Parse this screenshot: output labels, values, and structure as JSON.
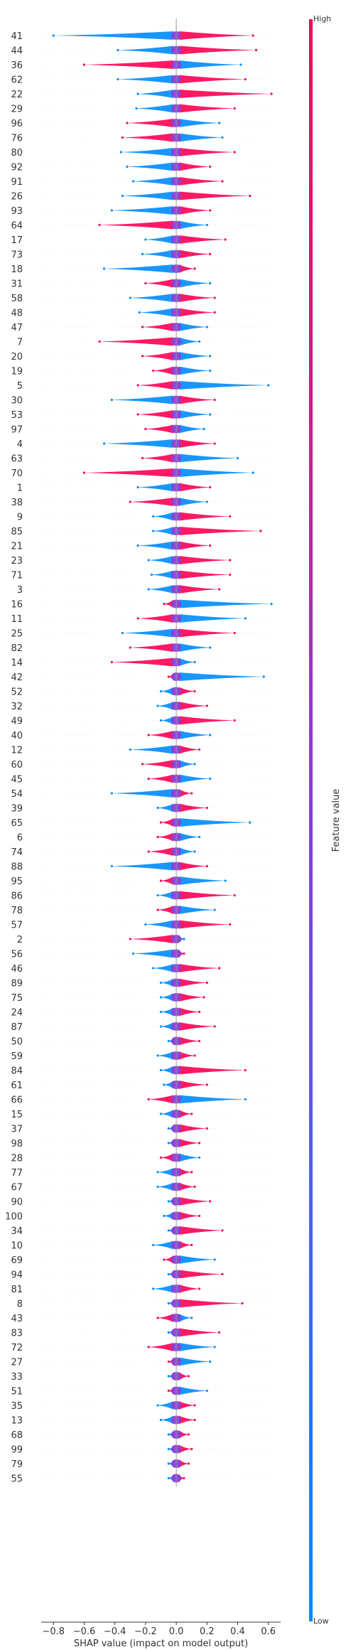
{
  "chart_data": {
    "type": "scatter",
    "subtype": "shap-beeswarm-summary",
    "xlabel": "SHAP value (impact on model output)",
    "ylabel": "",
    "xlim": [
      -0.88,
      0.68
    ],
    "x_ticks": [
      "−0.8",
      "−0.6",
      "−0.4",
      "−0.2",
      "0.0",
      "0.2",
      "0.4",
      "0.6"
    ],
    "x_tick_values": [
      -0.8,
      -0.6,
      -0.4,
      -0.2,
      0.0,
      0.2,
      0.4,
      0.6
    ],
    "grid": false,
    "zero_line": true,
    "colorbar": {
      "title": "Feature value",
      "high_label": "High",
      "low_label": "Low",
      "high_color": "#ff0052",
      "low_color": "#008bfb"
    },
    "features": [
      {
        "name": "41",
        "min": -0.8,
        "max": 0.5,
        "low_side": "left"
      },
      {
        "name": "44",
        "min": -0.38,
        "max": 0.52,
        "low_side": "left"
      },
      {
        "name": "36",
        "min": -0.6,
        "max": 0.42,
        "low_side": "right"
      },
      {
        "name": "62",
        "min": -0.38,
        "max": 0.45,
        "low_side": "left"
      },
      {
        "name": "22",
        "min": -0.25,
        "max": 0.62,
        "low_side": "left"
      },
      {
        "name": "29",
        "min": -0.26,
        "max": 0.38,
        "low_side": "left"
      },
      {
        "name": "96",
        "min": -0.32,
        "max": 0.28,
        "low_side": "right"
      },
      {
        "name": "76",
        "min": -0.35,
        "max": 0.3,
        "low_side": "right"
      },
      {
        "name": "80",
        "min": -0.36,
        "max": 0.38,
        "low_side": "left"
      },
      {
        "name": "92",
        "min": -0.32,
        "max": 0.22,
        "low_side": "left"
      },
      {
        "name": "91",
        "min": -0.28,
        "max": 0.3,
        "low_side": "left"
      },
      {
        "name": "26",
        "min": -0.35,
        "max": 0.48,
        "low_side": "left"
      },
      {
        "name": "93",
        "min": -0.42,
        "max": 0.22,
        "low_side": "left"
      },
      {
        "name": "64",
        "min": -0.5,
        "max": 0.2,
        "low_side": "right"
      },
      {
        "name": "17",
        "min": -0.2,
        "max": 0.32,
        "low_side": "left"
      },
      {
        "name": "73",
        "min": -0.22,
        "max": 0.22,
        "low_side": "left"
      },
      {
        "name": "18",
        "min": -0.47,
        "max": 0.12,
        "low_side": "left"
      },
      {
        "name": "31",
        "min": -0.2,
        "max": 0.22,
        "low_side": "right"
      },
      {
        "name": "58",
        "min": -0.3,
        "max": 0.25,
        "low_side": "left"
      },
      {
        "name": "48",
        "min": -0.24,
        "max": 0.25,
        "low_side": "left"
      },
      {
        "name": "47",
        "min": -0.22,
        "max": 0.2,
        "low_side": "right"
      },
      {
        "name": "7",
        "min": -0.5,
        "max": 0.15,
        "low_side": "right"
      },
      {
        "name": "20",
        "min": -0.22,
        "max": 0.22,
        "low_side": "right"
      },
      {
        "name": "19",
        "min": -0.15,
        "max": 0.22,
        "low_side": "right"
      },
      {
        "name": "5",
        "min": -0.25,
        "max": 0.6,
        "low_side": "right"
      },
      {
        "name": "30",
        "min": -0.42,
        "max": 0.25,
        "low_side": "left"
      },
      {
        "name": "53",
        "min": -0.25,
        "max": 0.22,
        "low_side": "right"
      },
      {
        "name": "97",
        "min": -0.2,
        "max": 0.18,
        "low_side": "right"
      },
      {
        "name": "4",
        "min": -0.47,
        "max": 0.25,
        "low_side": "left"
      },
      {
        "name": "63",
        "min": -0.22,
        "max": 0.4,
        "low_side": "right"
      },
      {
        "name": "70",
        "min": -0.6,
        "max": 0.5,
        "low_side": "right"
      },
      {
        "name": "1",
        "min": -0.25,
        "max": 0.22,
        "low_side": "left"
      },
      {
        "name": "38",
        "min": -0.3,
        "max": 0.2,
        "low_side": "right"
      },
      {
        "name": "9",
        "min": -0.15,
        "max": 0.35,
        "low_side": "left"
      },
      {
        "name": "85",
        "min": -0.15,
        "max": 0.55,
        "low_side": "left"
      },
      {
        "name": "21",
        "min": -0.25,
        "max": 0.22,
        "low_side": "left"
      },
      {
        "name": "23",
        "min": -0.18,
        "max": 0.35,
        "low_side": "left"
      },
      {
        "name": "71",
        "min": -0.16,
        "max": 0.35,
        "low_side": "left"
      },
      {
        "name": "3",
        "min": -0.18,
        "max": 0.28,
        "low_side": "left"
      },
      {
        "name": "16",
        "min": -0.08,
        "max": 0.62,
        "low_side": "right"
      },
      {
        "name": "11",
        "min": -0.25,
        "max": 0.45,
        "low_side": "right"
      },
      {
        "name": "25",
        "min": -0.35,
        "max": 0.38,
        "low_side": "left"
      },
      {
        "name": "82",
        "min": -0.3,
        "max": 0.22,
        "low_side": "right"
      },
      {
        "name": "14",
        "min": -0.42,
        "max": 0.12,
        "low_side": "right"
      },
      {
        "name": "42",
        "min": -0.05,
        "max": 0.57,
        "low_side": "right"
      },
      {
        "name": "52",
        "min": -0.1,
        "max": 0.12,
        "low_side": "left"
      },
      {
        "name": "32",
        "min": -0.12,
        "max": 0.2,
        "low_side": "left"
      },
      {
        "name": "49",
        "min": -0.1,
        "max": 0.38,
        "low_side": "left"
      },
      {
        "name": "40",
        "min": -0.18,
        "max": 0.22,
        "low_side": "right"
      },
      {
        "name": "12",
        "min": -0.3,
        "max": 0.15,
        "low_side": "left"
      },
      {
        "name": "60",
        "min": -0.22,
        "max": 0.12,
        "low_side": "right"
      },
      {
        "name": "45",
        "min": -0.18,
        "max": 0.22,
        "low_side": "right"
      },
      {
        "name": "54",
        "min": -0.42,
        "max": 0.1,
        "low_side": "left"
      },
      {
        "name": "39",
        "min": -0.12,
        "max": 0.2,
        "low_side": "left"
      },
      {
        "name": "65",
        "min": -0.1,
        "max": 0.48,
        "low_side": "right"
      },
      {
        "name": "6",
        "min": -0.12,
        "max": 0.15,
        "low_side": "right"
      },
      {
        "name": "74",
        "min": -0.18,
        "max": 0.12,
        "low_side": "right"
      },
      {
        "name": "88",
        "min": -0.42,
        "max": 0.2,
        "low_side": "left"
      },
      {
        "name": "95",
        "min": -0.1,
        "max": 0.32,
        "low_side": "right"
      },
      {
        "name": "86",
        "min": -0.12,
        "max": 0.38,
        "low_side": "left"
      },
      {
        "name": "78",
        "min": -0.12,
        "max": 0.25,
        "low_side": "right"
      },
      {
        "name": "57",
        "min": -0.2,
        "max": 0.35,
        "low_side": "left"
      },
      {
        "name": "2",
        "min": -0.3,
        "max": 0.05,
        "low_side": "right"
      },
      {
        "name": "56",
        "min": -0.28,
        "max": 0.05,
        "low_side": "left"
      },
      {
        "name": "46",
        "min": -0.15,
        "max": 0.28,
        "low_side": "left"
      },
      {
        "name": "89",
        "min": -0.1,
        "max": 0.2,
        "low_side": "left"
      },
      {
        "name": "75",
        "min": -0.1,
        "max": 0.18,
        "low_side": "left"
      },
      {
        "name": "24",
        "min": -0.1,
        "max": 0.15,
        "low_side": "left"
      },
      {
        "name": "87",
        "min": -0.1,
        "max": 0.25,
        "low_side": "left"
      },
      {
        "name": "50",
        "min": -0.05,
        "max": 0.15,
        "low_side": "left"
      },
      {
        "name": "59",
        "min": -0.12,
        "max": 0.12,
        "low_side": "left"
      },
      {
        "name": "84",
        "min": -0.1,
        "max": 0.45,
        "low_side": "left"
      },
      {
        "name": "61",
        "min": -0.08,
        "max": 0.2,
        "low_side": "left"
      },
      {
        "name": "66",
        "min": -0.18,
        "max": 0.45,
        "low_side": "right"
      },
      {
        "name": "15",
        "min": -0.1,
        "max": 0.1,
        "low_side": "left"
      },
      {
        "name": "37",
        "min": -0.05,
        "max": 0.2,
        "low_side": "left"
      },
      {
        "name": "98",
        "min": -0.05,
        "max": 0.15,
        "low_side": "left"
      },
      {
        "name": "28",
        "min": -0.1,
        "max": 0.15,
        "low_side": "right"
      },
      {
        "name": "77",
        "min": -0.12,
        "max": 0.1,
        "low_side": "left"
      },
      {
        "name": "67",
        "min": -0.12,
        "max": 0.12,
        "low_side": "left"
      },
      {
        "name": "90",
        "min": -0.05,
        "max": 0.22,
        "low_side": "left"
      },
      {
        "name": "100",
        "min": -0.08,
        "max": 0.15,
        "low_side": "left"
      },
      {
        "name": "34",
        "min": -0.05,
        "max": 0.3,
        "low_side": "left"
      },
      {
        "name": "10",
        "min": -0.15,
        "max": 0.1,
        "low_side": "left"
      },
      {
        "name": "69",
        "min": -0.08,
        "max": 0.25,
        "low_side": "right"
      },
      {
        "name": "94",
        "min": -0.05,
        "max": 0.3,
        "low_side": "left"
      },
      {
        "name": "81",
        "min": -0.15,
        "max": 0.15,
        "low_side": "left"
      },
      {
        "name": "8",
        "min": -0.05,
        "max": 0.43,
        "low_side": "left"
      },
      {
        "name": "43",
        "min": -0.12,
        "max": 0.1,
        "low_side": "right"
      },
      {
        "name": "83",
        "min": -0.05,
        "max": 0.28,
        "low_side": "left"
      },
      {
        "name": "72",
        "min": -0.18,
        "max": 0.25,
        "low_side": "right"
      },
      {
        "name": "27",
        "min": -0.05,
        "max": 0.22,
        "low_side": "right"
      },
      {
        "name": "33",
        "min": -0.05,
        "max": 0.08,
        "low_side": "left"
      },
      {
        "name": "51",
        "min": -0.05,
        "max": 0.2,
        "low_side": "right"
      },
      {
        "name": "35",
        "min": -0.12,
        "max": 0.12,
        "low_side": "left"
      },
      {
        "name": "13",
        "min": -0.1,
        "max": 0.12,
        "low_side": "left"
      },
      {
        "name": "68",
        "min": -0.05,
        "max": 0.08,
        "low_side": "left"
      },
      {
        "name": "99",
        "min": -0.05,
        "max": 0.1,
        "low_side": "left"
      },
      {
        "name": "79",
        "min": -0.05,
        "max": 0.08,
        "low_side": "left"
      },
      {
        "name": "55",
        "min": -0.05,
        "max": 0.05,
        "low_side": "left"
      }
    ]
  }
}
